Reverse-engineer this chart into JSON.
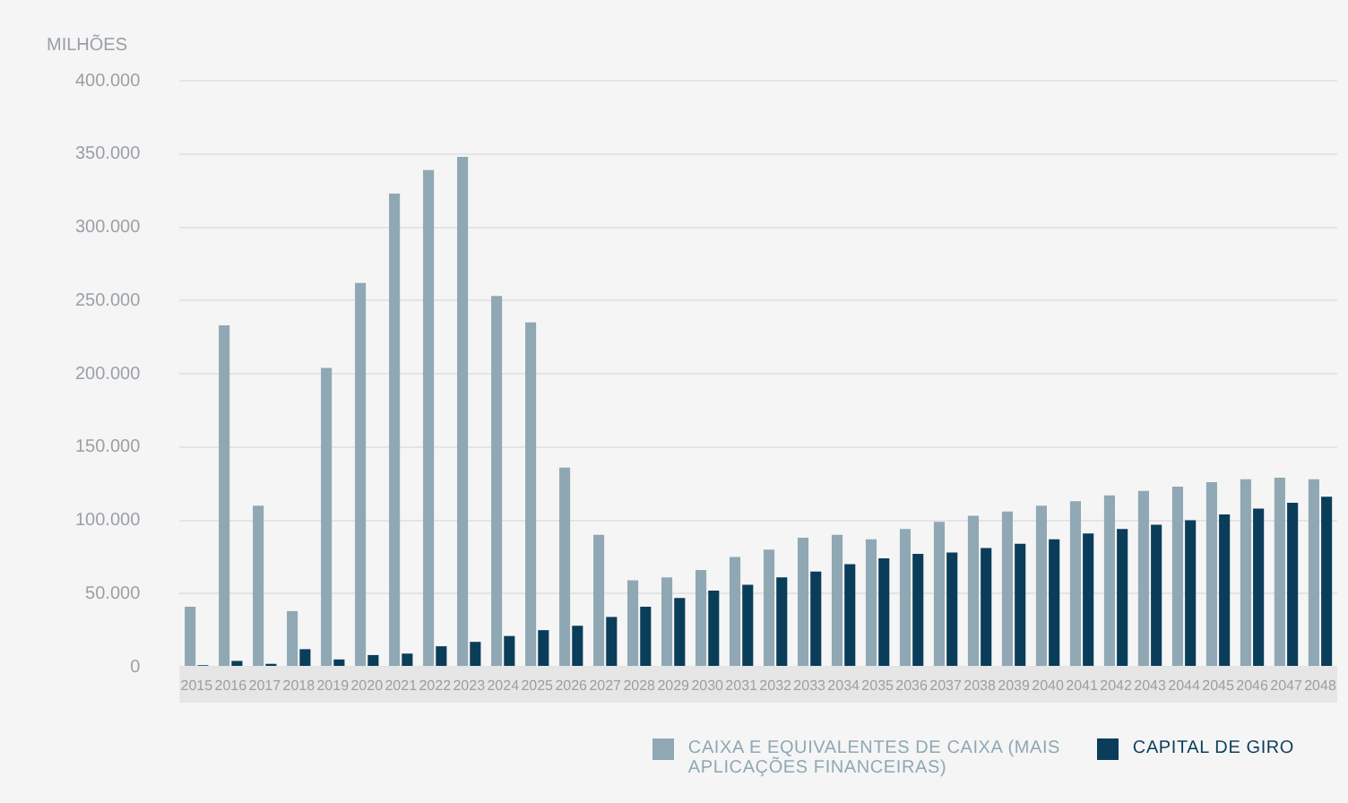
{
  "chart_data": {
    "type": "bar",
    "ylabel": "MILHÕES",
    "categories": [
      "2015",
      "2016",
      "2017",
      "2018",
      "2019",
      "2020",
      "2021",
      "2022",
      "2023",
      "2024",
      "2025",
      "2026",
      "2027",
      "2028",
      "2029",
      "2030",
      "2031",
      "2032",
      "2033",
      "2034",
      "2035",
      "2036",
      "2037",
      "2038",
      "2039",
      "2040",
      "2041",
      "2042",
      "2043",
      "2044",
      "2045",
      "2046",
      "2047",
      "2048"
    ],
    "series": [
      {
        "name": "CAIXA E EQUIVALENTES DE CAIXA (MAIS APLICAÇÕES FINANCEIRAS)",
        "color": "#8fa8b4",
        "values": [
          41000,
          233000,
          110000,
          38000,
          204000,
          262000,
          323000,
          339000,
          348000,
          253000,
          235000,
          136000,
          90000,
          59000,
          61000,
          66000,
          75000,
          80000,
          88000,
          90000,
          87000,
          94000,
          99000,
          103000,
          106000,
          110000,
          113000,
          117000,
          120000,
          123000,
          126000,
          128000,
          129000,
          128000
        ]
      },
      {
        "name": "CAPITAL DE GIRO",
        "color": "#0a3d5a",
        "values": [
          1000,
          4000,
          2000,
          12000,
          5000,
          8000,
          9000,
          14000,
          17000,
          21000,
          25000,
          28000,
          34000,
          41000,
          47000,
          52000,
          56000,
          61000,
          65000,
          70000,
          74000,
          77000,
          78000,
          81000,
          84000,
          87000,
          91000,
          94000,
          97000,
          100000,
          104000,
          108000,
          112000,
          116000
        ]
      }
    ],
    "ylim": [
      0,
      400000
    ],
    "yticks": [
      {
        "value": 0,
        "label": "0"
      },
      {
        "value": 50000,
        "label": "50.000"
      },
      {
        "value": 100000,
        "label": "100.000"
      },
      {
        "value": 150000,
        "label": "150.000"
      },
      {
        "value": 200000,
        "label": "200.000"
      },
      {
        "value": 250000,
        "label": "250.000"
      },
      {
        "value": 300000,
        "label": "300.000"
      },
      {
        "value": 350000,
        "label": "350.000"
      },
      {
        "value": 400000,
        "label": "400.000"
      }
    ],
    "grid": "y",
    "legend": "bottom right"
  }
}
